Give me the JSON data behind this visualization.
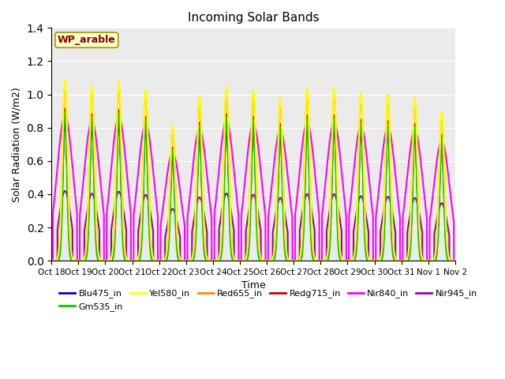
{
  "title": "Incoming Solar Bands",
  "xlabel": "Time",
  "ylabel": "Solar Radiation (W/m2)",
  "annotation": "WP_arable",
  "ylim": [
    0,
    1.4
  ],
  "axes_bg_color": "#ebebeb",
  "n_days": 15,
  "peaks": [
    1.09,
    1.05,
    1.08,
    1.03,
    0.81,
    0.99,
    1.05,
    1.03,
    0.98,
    1.04,
    1.04,
    1.01,
    1.0,
    0.98,
    0.9
  ],
  "tick_labels": [
    "Oct 18",
    "Oct 19",
    "Oct 20",
    "Oct 21",
    "Oct 22",
    "Oct 23",
    "Oct 24",
    "Oct 25",
    "Oct 26",
    "Oct 27",
    "Oct 28",
    "Oct 29",
    "Oct 30",
    "Oct 31",
    "Nov 1",
    "Nov 2"
  ],
  "colors": {
    "Blu475_in": "#0000cc",
    "Gm535_in": "#00cc00",
    "Yel580_in": "#ffff00",
    "Red655_in": "#ff8800",
    "Redg715_in": "#cc0000",
    "Nir840_in": "#ff00ff",
    "Nir945_in": "#9900bb"
  },
  "series_order": [
    "Nir945_in",
    "Nir840_in",
    "Redg715_in",
    "Blu475_in",
    "Gm535_in",
    "Red655_in",
    "Yel580_in"
  ],
  "legend_order": [
    "Blu475_in",
    "Gm535_in",
    "Yel580_in",
    "Red655_in",
    "Redg715_in",
    "Nir840_in",
    "Nir945_in"
  ]
}
